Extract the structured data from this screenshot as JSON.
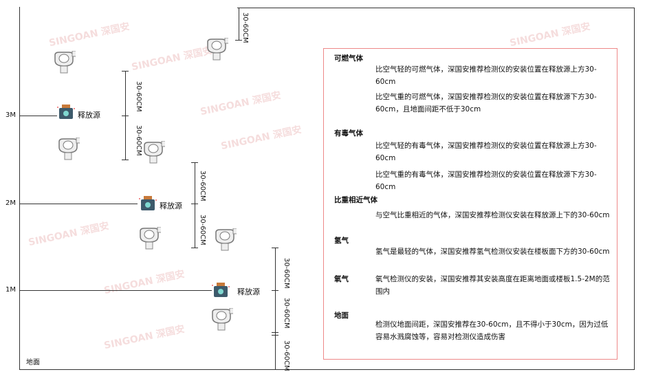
{
  "levels": {
    "l3": "3M",
    "l2": "2M",
    "l1": "1M",
    "ground": "地面"
  },
  "dimension_label": "30-60CM",
  "source_label": "释放源",
  "watermark": "SINGOAN 深国安",
  "colors": {
    "box_border": "#e88888",
    "line": "#333333"
  },
  "notes": {
    "combustible": {
      "title": "可燃气体",
      "p1": "比空气轻的可燃气体，深国安推荐检测仪的安装位置在释放源上方30-60cm",
      "p2": "比空气重的可燃气体，深国安推荐检测仪的安装位置在释放源下方30-60cm，且地面间距不低于30cm"
    },
    "toxic": {
      "title": "有毒气体",
      "p1": "比空气轻的有毒气体，深国安推荐检测仪的安装位置在释放源上方30-60cm",
      "p2": "比空气重的有毒气体，深国安推荐检测仪的安装位置在释放源下方30-60cm"
    },
    "similar": {
      "title": "比重相近气体",
      "p1": "与空气比重相近的气体，深国安推荐检测仪安装在释放源上下的30-60cm"
    },
    "hydrogen": {
      "title": "氢气",
      "p1": "氢气是最轻的气体，深国安推荐氢气检测仪安装在楼板面下方的30-60cm"
    },
    "oxygen": {
      "title": "氧气",
      "p1": "氧气检测仪的安装，深国安推荐其安装高度在距离地面或楼板1.5-2M的范围内"
    },
    "ground": {
      "title": "地面",
      "p1": "检测仪地面间距，深国安推荐在30-60cm，且不得小于30cm，因为过低容易水溅腐蚀等，容易对检测仪造成伤害"
    }
  }
}
